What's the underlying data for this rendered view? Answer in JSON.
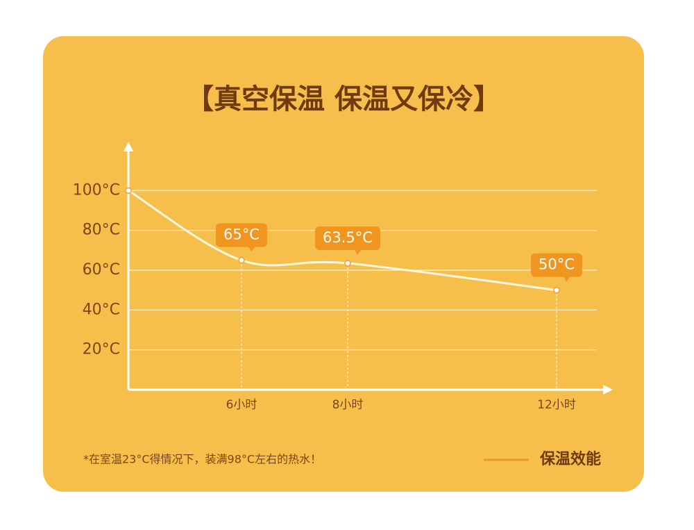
{
  "chart_data": {
    "type": "line",
    "title": "【真空保温 保温又保冷】",
    "note": "*在室温23°C得情况下，装满98°C左右的热水！",
    "categories": [
      null,
      "6小时",
      "8小时",
      "12小时"
    ],
    "series": [
      {
        "name": "保温效能",
        "color": "#fff8e1",
        "values": [
          100,
          65,
          63.5,
          50
        ],
        "value_labels": [
          null,
          "65°C",
          "63.5°C",
          "50°C"
        ]
      }
    ],
    "ylim": [
      0,
      120
    ],
    "yticks": [
      {
        "value": 20,
        "label": "20°C"
      },
      {
        "value": 40,
        "label": "40°C"
      },
      {
        "value": 60,
        "label": "60°C"
      },
      {
        "value": 80,
        "label": "80°C"
      },
      {
        "value": 100,
        "label": "100°C"
      }
    ],
    "grid": true
  }
}
